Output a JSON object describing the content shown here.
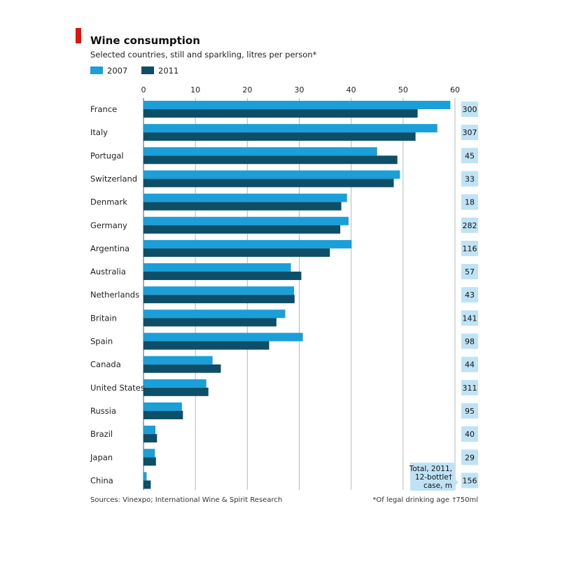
{
  "chart_data": {
    "type": "bar",
    "orientation": "horizontal",
    "title": "Wine consumption",
    "subtitle": "Selected countries, still and sparkling, litres per person*",
    "categories": [
      "France",
      "Italy",
      "Portugal",
      "Switzerland",
      "Denmark",
      "Germany",
      "Argentina",
      "Australia",
      "Netherlands",
      "Britain",
      "Spain",
      "Canada",
      "United States",
      "Russia",
      "Brazil",
      "Japan",
      "China"
    ],
    "series": [
      {
        "name": "2007",
        "color": "#1a9fd9",
        "values": [
          59.1,
          56.6,
          45.0,
          49.4,
          39.2,
          39.5,
          40.1,
          28.4,
          29.0,
          27.3,
          30.7,
          13.3,
          12.1,
          7.4,
          2.3,
          2.2,
          0.6
        ]
      },
      {
        "name": "2011",
        "color": "#0d4e68",
        "values": [
          52.8,
          52.4,
          48.9,
          48.2,
          38.1,
          37.9,
          35.9,
          30.4,
          29.1,
          25.6,
          24.2,
          14.9,
          12.5,
          7.6,
          2.6,
          2.4,
          1.4
        ]
      }
    ],
    "xlim": [
      0,
      60
    ],
    "xticks": [
      "0",
      "10",
      "20",
      "30",
      "40",
      "50",
      "60"
    ],
    "grid": true,
    "legend_position": "top-left",
    "side_column": {
      "values": [
        "300",
        "307",
        "45",
        "33",
        "18",
        "282",
        "116",
        "57",
        "43",
        "141",
        "98",
        "44",
        "311",
        "95",
        "40",
        "29",
        "156"
      ],
      "callout": [
        "Total, 2011,",
        "12-bottle†",
        "case, m"
      ]
    },
    "source": "Sources: Vinexpo; International Wine & Spirit Research",
    "footnote_star": "*Of legal drinking age",
    "footnote_dagger": "†750ml"
  },
  "colors": {
    "accent": "#e3120b",
    "grid": "#b8b8b8",
    "box": "#bfe3f5"
  }
}
